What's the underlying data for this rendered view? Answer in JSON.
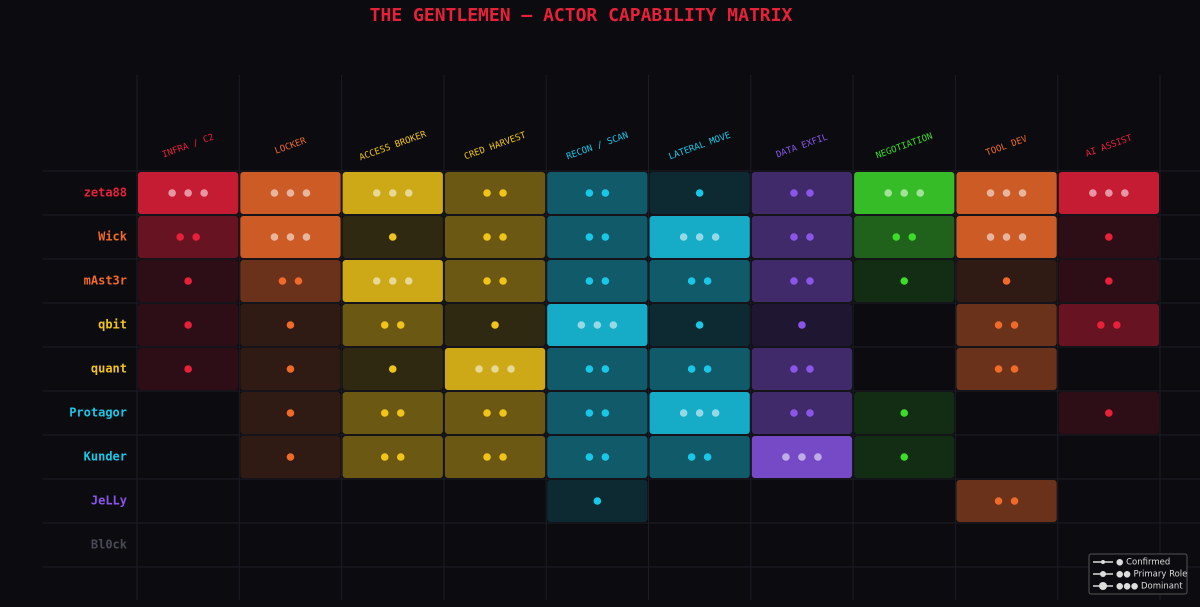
{
  "chart_data": {
    "type": "matrix",
    "title": "THE GENTLEMEN — ACTOR CAPABILITY MATRIX",
    "categories": [
      "INFRA / C2",
      "LOCKER",
      "ACCESS BROKER",
      "CRED HARVEST",
      "RECON / SCAN",
      "LATERAL MOVE",
      "DATA EXFIL",
      "NEGOTIATION",
      "TOOL DEV",
      "AI ASSIST"
    ],
    "colors": [
      "#e8203a",
      "#f06a2a",
      "#f0c419",
      "#f0c419",
      "#19c8e6",
      "#19c8e6",
      "#8a55e8",
      "#3ddc2a",
      "#f06a2a",
      "#e8203a"
    ],
    "rows": [
      "zeta88",
      "Wick",
      "mAst3r",
      "qbit",
      "quant",
      "Protagor",
      "Kunder",
      "JeLLy",
      "Bl0ck"
    ],
    "row_colors": [
      "#e8203a",
      "#f06a2a",
      "#f06a2a",
      "#f0c419",
      "#f0c419",
      "#19c8e6",
      "#19c8e6",
      "#8a55e8",
      "#4a4a55"
    ],
    "values": [
      [
        3,
        3,
        3,
        2,
        2,
        1,
        2,
        3,
        3,
        3
      ],
      [
        2,
        3,
        1,
        2,
        2,
        3,
        2,
        2,
        3,
        1
      ],
      [
        1,
        2,
        3,
        2,
        2,
        2,
        2,
        1,
        1,
        1
      ],
      [
        1,
        1,
        2,
        1,
        3,
        1,
        1,
        0,
        2,
        2
      ],
      [
        1,
        1,
        1,
        3,
        2,
        2,
        2,
        0,
        2,
        0
      ],
      [
        0,
        1,
        2,
        2,
        2,
        3,
        2,
        1,
        0,
        1
      ],
      [
        0,
        1,
        2,
        2,
        2,
        2,
        3,
        1,
        0,
        0
      ],
      [
        0,
        0,
        0,
        0,
        1,
        0,
        0,
        0,
        2,
        0
      ],
      [
        0,
        0,
        0,
        0,
        0,
        0,
        0,
        0,
        0,
        0
      ]
    ],
    "legend": [
      "● Confirmed",
      "●● Primary Role",
      "●●● Dominant"
    ]
  }
}
